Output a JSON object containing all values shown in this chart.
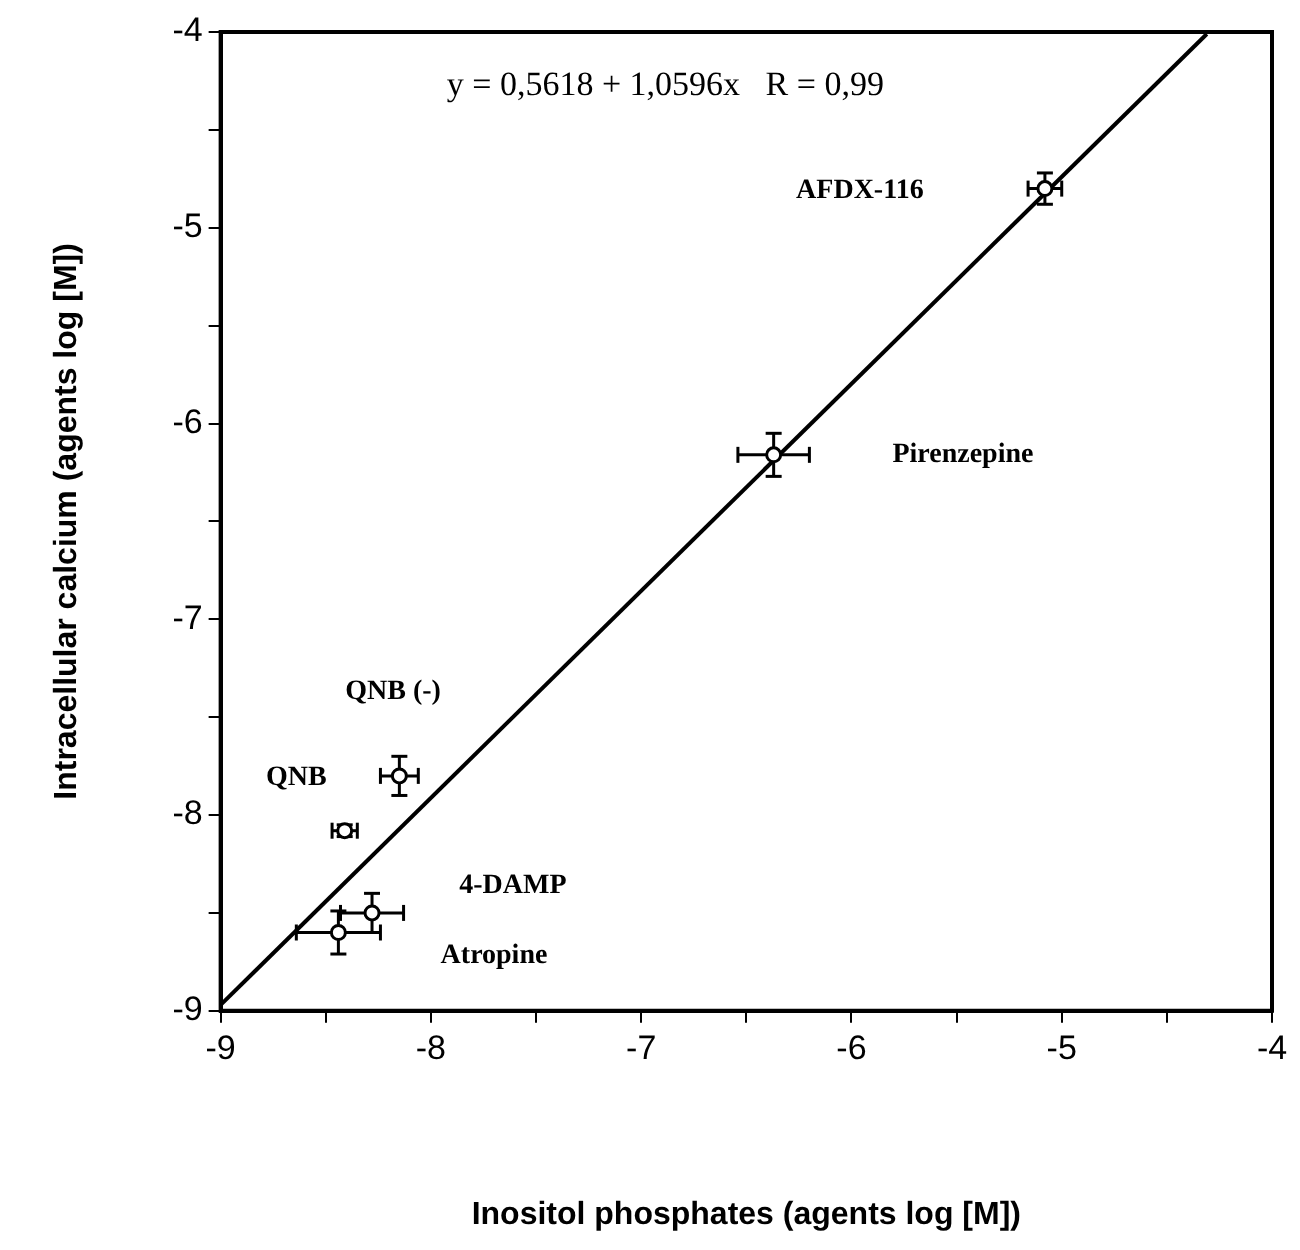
{
  "chart_data": {
    "type": "scatter",
    "xlabel": "Inositol phosphates (agents log [M])",
    "ylabel": "Intracellular calcium (agents log [M])",
    "xlim": [
      -9,
      -4
    ],
    "ylim": [
      -9,
      -4
    ],
    "xticks": [
      -9,
      {
        "value": -8.5,
        "label": null
      },
      -8,
      {
        "value": -7.5,
        "label": null
      },
      -7,
      {
        "value": -6.5,
        "label": null
      },
      -6,
      {
        "value": -5.5,
        "label": null
      },
      -5,
      {
        "value": -4.5,
        "label": null
      },
      -4
    ],
    "yticks": [
      -9,
      {
        "value": -8.5,
        "label": null
      },
      -8,
      {
        "value": -7.5,
        "label": null
      },
      -7,
      {
        "value": -6.5,
        "label": null
      },
      -6,
      {
        "value": -5.5,
        "label": null
      },
      -5,
      {
        "value": -4.5,
        "label": null
      },
      -4
    ],
    "grid": false,
    "legend": false,
    "series": [
      {
        "type": "scatter",
        "color": "#000000",
        "marker": "circle",
        "x": [
          -5.08,
          -6.37,
          -8.15,
          -8.41,
          -8.28,
          -8.44
        ],
        "values": [
          -4.8,
          -6.16,
          -7.8,
          -8.08,
          -8.5,
          -8.6
        ],
        "xerrors": [
          0.08,
          0.17,
          0.09,
          0.06,
          0.15,
          0.2
        ],
        "errors": [
          0.08,
          0.11,
          0.1,
          0.03,
          0.1,
          0.11
        ]
      },
      {
        "type": "line",
        "color": "#000000",
        "marker": "none",
        "x": [
          -9,
          -4.31
        ],
        "values": [
          -8.97,
          -4.01
        ]
      }
    ],
    "annotations": [
      "y = 0,5618 + 1,0596x   R = 0,99",
      "AFDX-116",
      "Pirenzepine",
      "QNB (-)",
      "QNB",
      "4-DAMP",
      "Atropine"
    ]
  }
}
